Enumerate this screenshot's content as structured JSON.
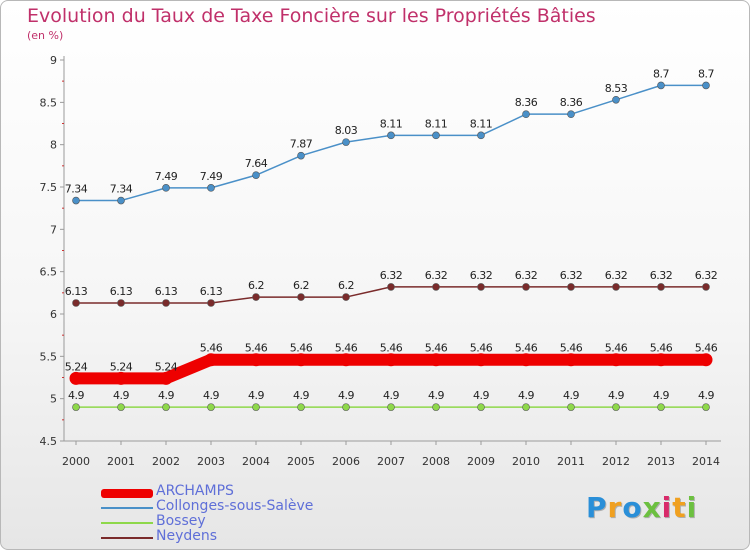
{
  "chart_data": {
    "type": "line",
    "title": "Evolution du Taux de Taxe Foncière sur les Propriétés Bâties",
    "subtitle": "(en %)",
    "x": [
      "2000",
      "2001",
      "2002",
      "2003",
      "2004",
      "2005",
      "2006",
      "2007",
      "2008",
      "2009",
      "2010",
      "2011",
      "2012",
      "2013",
      "2014"
    ],
    "ylim": [
      4.5,
      9
    ],
    "yticks": [
      "4.5",
      "5",
      "5.5",
      "6",
      "6.5",
      "7",
      "7.5",
      "8",
      "8.5",
      "9"
    ],
    "grid": "none",
    "legend_position": "bottom-left",
    "series": [
      {
        "name": "ARCHAMPS",
        "color": "#ee0000",
        "values": [
          5.24,
          5.24,
          5.24,
          5.46,
          5.46,
          5.46,
          5.46,
          5.46,
          5.46,
          5.46,
          5.46,
          5.46,
          5.46,
          5.46,
          5.46
        ],
        "labels": [
          "5.24",
          "5.24",
          "5.24",
          "5.46",
          "5.46",
          "5.46",
          "5.46",
          "5.46",
          "5.46",
          "5.46",
          "5.46",
          "5.46",
          "5.46",
          "5.46",
          "5.46"
        ]
      },
      {
        "name": "Collonges-sous-Salève",
        "color": "#4a90c8",
        "values": [
          7.34,
          7.34,
          7.49,
          7.49,
          7.64,
          7.87,
          8.03,
          8.11,
          8.11,
          8.11,
          8.36,
          8.36,
          8.53,
          8.7,
          8.7
        ],
        "labels": [
          "7.34",
          "7.34",
          "7.49",
          "7.49",
          "7.64",
          "7.87",
          "8.03",
          "8.11",
          "8.11",
          "8.11",
          "8.36",
          "8.36",
          "8.53",
          "8.7",
          "8.7"
        ]
      },
      {
        "name": "Bossey",
        "color": "#8ed84a",
        "values": [
          4.9,
          4.9,
          4.9,
          4.9,
          4.9,
          4.9,
          4.9,
          4.9,
          4.9,
          4.9,
          4.9,
          4.9,
          4.9,
          4.9,
          4.9
        ],
        "labels": [
          "4.9",
          "4.9",
          "4.9",
          "4.9",
          "4.9",
          "4.9",
          "4.9",
          "4.9",
          "4.9",
          "4.9",
          "4.9",
          "4.9",
          "4.9",
          "4.9",
          "4.9"
        ]
      },
      {
        "name": "Neydens",
        "color": "#7a2b2b",
        "values": [
          6.13,
          6.13,
          6.13,
          6.13,
          6.2,
          6.2,
          6.2,
          6.32,
          6.32,
          6.32,
          6.32,
          6.32,
          6.32,
          6.32,
          6.32
        ],
        "labels": [
          "6.13",
          "6.13",
          "6.13",
          "6.13",
          "6.2",
          "6.2",
          "6.2",
          "6.32",
          "6.32",
          "6.32",
          "6.32",
          "6.32",
          "6.32",
          "6.32",
          "6.32"
        ]
      }
    ]
  },
  "logo": {
    "letters": [
      "P",
      "r",
      "o",
      "x",
      "i",
      "t",
      "i"
    ],
    "colors": [
      "#2a8fd8",
      "#f0a020",
      "#2a8fd8",
      "#6cc040",
      "#d82a6a",
      "#f0a020",
      "#6cc040"
    ]
  }
}
